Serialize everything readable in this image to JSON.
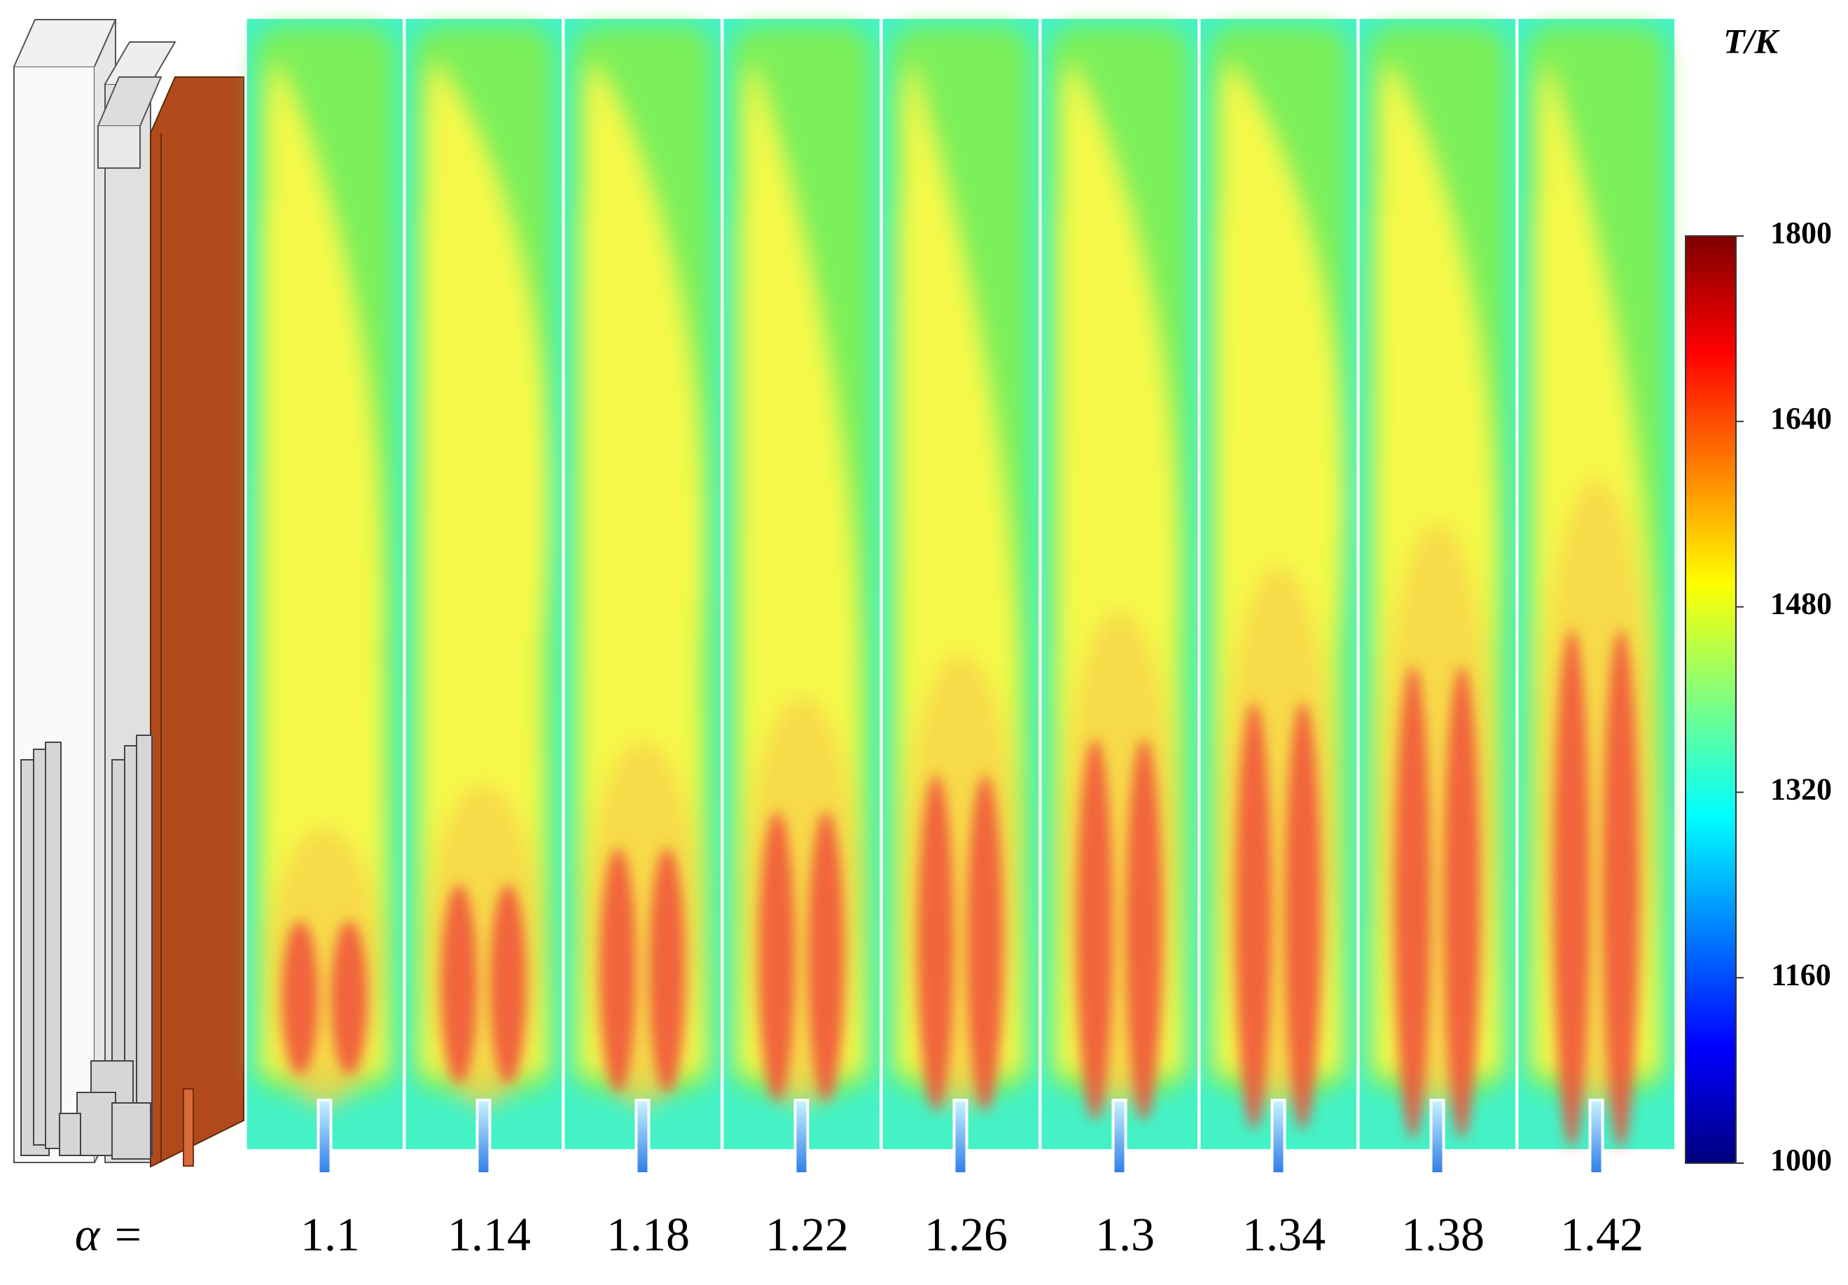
{
  "colorbar": {
    "label": "T/K",
    "lim": [
      1000,
      1800
    ],
    "ticks": [
      1800,
      1640,
      1480,
      1320,
      1160,
      1000
    ]
  },
  "panels": {
    "label": "α =",
    "alphas": [
      "1.1",
      "1.14",
      "1.18",
      "1.22",
      "1.26",
      "1.3",
      "1.34",
      "1.38",
      "1.42"
    ]
  }
}
